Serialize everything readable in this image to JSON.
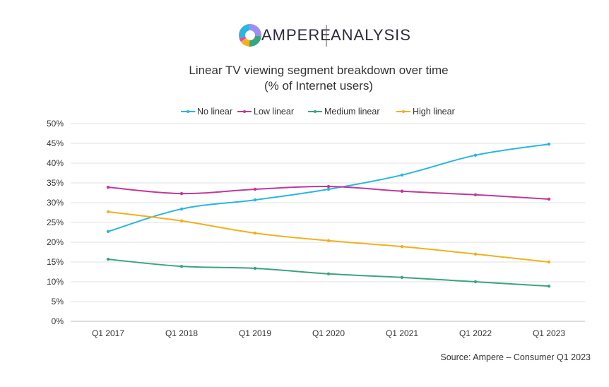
{
  "logo": {
    "brand": "AMPERE",
    "sub": "ANALYSIS",
    "colors": [
      "#a08cf2",
      "#3aa57c",
      "#f2b01e",
      "#e04ea0",
      "#29b6e0"
    ]
  },
  "chart_data": {
    "type": "line",
    "title": "Linear TV viewing segment breakdown over time",
    "subtitle": "(% of Internet users)",
    "categories": [
      "Q1 2017",
      "Q1 2018",
      "Q1 2019",
      "Q1 2020",
      "Q1 2021",
      "Q1 2022",
      "Q1 2023"
    ],
    "ylim": [
      0,
      50
    ],
    "yticks": [
      0,
      5,
      10,
      15,
      20,
      25,
      30,
      35,
      40,
      45,
      50
    ],
    "ytick_labels": [
      "0%",
      "5%",
      "10%",
      "15%",
      "20%",
      "25%",
      "30%",
      "35%",
      "40%",
      "45%",
      "50%"
    ],
    "grid": true,
    "legend": "top",
    "series": [
      {
        "name": "No linear",
        "color": "#29b6e0",
        "values": [
          22.7,
          28.4,
          30.7,
          33.4,
          37,
          42,
          44.8
        ]
      },
      {
        "name": "Low linear",
        "color": "#c0399a",
        "values": [
          33.9,
          32.3,
          33.4,
          34.1,
          32.9,
          32,
          30.9
        ]
      },
      {
        "name": "Medium linear",
        "color": "#3aa57c",
        "values": [
          15.7,
          13.9,
          13.4,
          12,
          11.1,
          10,
          8.9
        ]
      },
      {
        "name": "High linear",
        "color": "#f2b01e",
        "values": [
          27.7,
          25.4,
          22.3,
          20.4,
          18.9,
          17,
          15
        ]
      }
    ],
    "source": "Source: Ampere – Consumer Q1 2023"
  }
}
